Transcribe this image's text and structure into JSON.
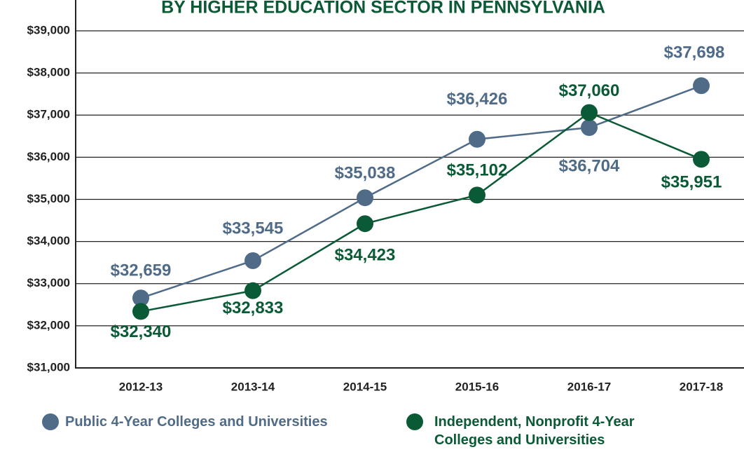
{
  "chart_data": {
    "type": "line",
    "title": "BY HIGHER EDUCATION SECTOR IN PENNSYLVANIA",
    "categories": [
      "2012-13",
      "2013-14",
      "2014-15",
      "2015-16",
      "2016-17",
      "2017-18"
    ],
    "series": [
      {
        "name": "Public 4-Year Colleges and Universities",
        "color": "#4f6b88",
        "values": [
          32659,
          33545,
          35038,
          36426,
          36704,
          37698
        ],
        "value_labels": [
          "$32,659",
          "$33,545",
          "$35,038",
          "$36,426",
          "$36,704",
          "$37,698"
        ]
      },
      {
        "name": "Independent, Nonprofit 4-Year Colleges and Universities",
        "color": "#0b5a36",
        "values": [
          32340,
          32833,
          34423,
          35102,
          37060,
          35951
        ],
        "value_labels": [
          "$32,340",
          "$32,833",
          "$34,423",
          "$35,102",
          "$37,060",
          "$35,951"
        ]
      }
    ],
    "ylim": [
      31000,
      39000
    ],
    "yticks": [
      {
        "value": 31000,
        "label": "$31,000"
      },
      {
        "value": 32000,
        "label": "$32,000"
      },
      {
        "value": 33000,
        "label": "$33,000"
      },
      {
        "value": 34000,
        "label": "$34,000"
      },
      {
        "value": 35000,
        "label": "$35,000"
      },
      {
        "value": 36000,
        "label": "$36,000"
      },
      {
        "value": 37000,
        "label": "$37,000"
      },
      {
        "value": 38000,
        "label": "$38,000"
      },
      {
        "value": 39000,
        "label": "$39,000"
      }
    ],
    "grid": true
  }
}
